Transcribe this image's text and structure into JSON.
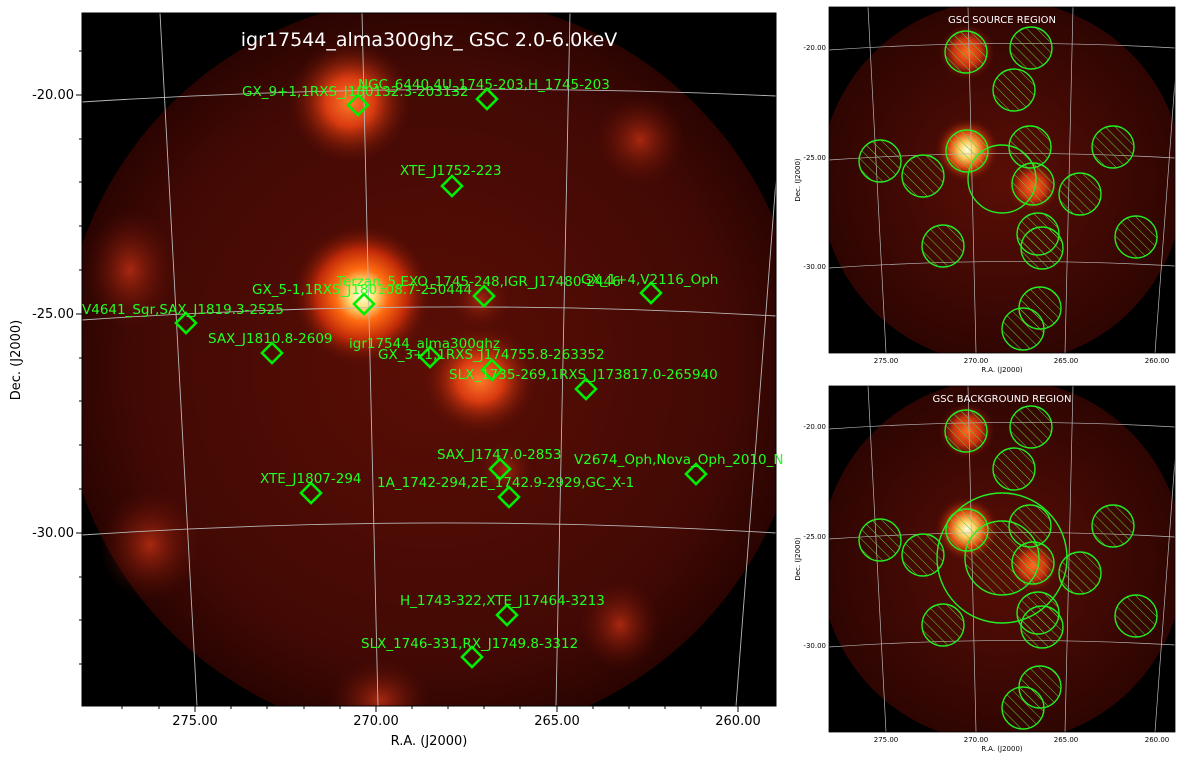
{
  "main": {
    "title": "igr17544_alma300ghz_ GSC 2.0-6.0keV",
    "xlabel": "R.A. (J2000)",
    "ylabel": "Dec. (J2000)",
    "xticks": [
      "275.00",
      "270.00",
      "265.00",
      "260.00"
    ],
    "yticks": [
      "-20.00",
      "-25.00",
      "-30.00"
    ],
    "sources": [
      {
        "label": "GX_9+1,1RXS_J180132.3-203132"
      },
      {
        "label": "NGC_6440,4U_1745-203,H_1745-203"
      },
      {
        "label": "XTE_J1752-223"
      },
      {
        "label": "GX_5-1,1RXS_J180108.7-250444"
      },
      {
        "label": "Terzan_5,EXO_1745-248,IGR_J17480-2446"
      },
      {
        "label": "GX_1+4,V2116_Oph"
      },
      {
        "label": "V4641_Sgr,SAX_J1819.3-2525"
      },
      {
        "label": "SAX_J1810.8-2609"
      },
      {
        "label": "igr17544_alma300ghz"
      },
      {
        "label": "GX_3+1,1RXS_J174755.8-263352"
      },
      {
        "label": "SLX_1735-269,1RXS_J173817.0-265940"
      },
      {
        "label": "SAX_J1747.0-2853"
      },
      {
        "label": "V2674_Oph,Nova_Oph_2010_N"
      },
      {
        "label": "XTE_J1807-294"
      },
      {
        "label": "1A_1742-294,2E_1742.9-2929,GC_X-1"
      },
      {
        "label": "H_1743-322,XTE_J17464-3213"
      },
      {
        "label": "SLX_1746-331,RX_J1749.8-3312"
      }
    ]
  },
  "source_panel": {
    "title": "GSC SOURCE REGION",
    "xlabel": "R.A. (J2000)",
    "ylabel": "Dec. (J2000)",
    "xticks": [
      "275.00",
      "270.00",
      "265.00",
      "260.00"
    ],
    "yticks": [
      "-20.00",
      "-25.00",
      "-30.00"
    ]
  },
  "background_panel": {
    "title": "GSC BACKGROUND REGION",
    "xlabel": "R.A. (J2000)",
    "ylabel": "Dec. (J2000)",
    "xticks": [
      "275.00",
      "270.00",
      "265.00",
      "260.00"
    ],
    "yticks": [
      "-20.00",
      "-25.00",
      "-30.00"
    ]
  },
  "colors": {
    "marker": "#00ee00",
    "label": "#22ff22",
    "grid": "#b8b8b8",
    "image_bg": "#000000"
  }
}
